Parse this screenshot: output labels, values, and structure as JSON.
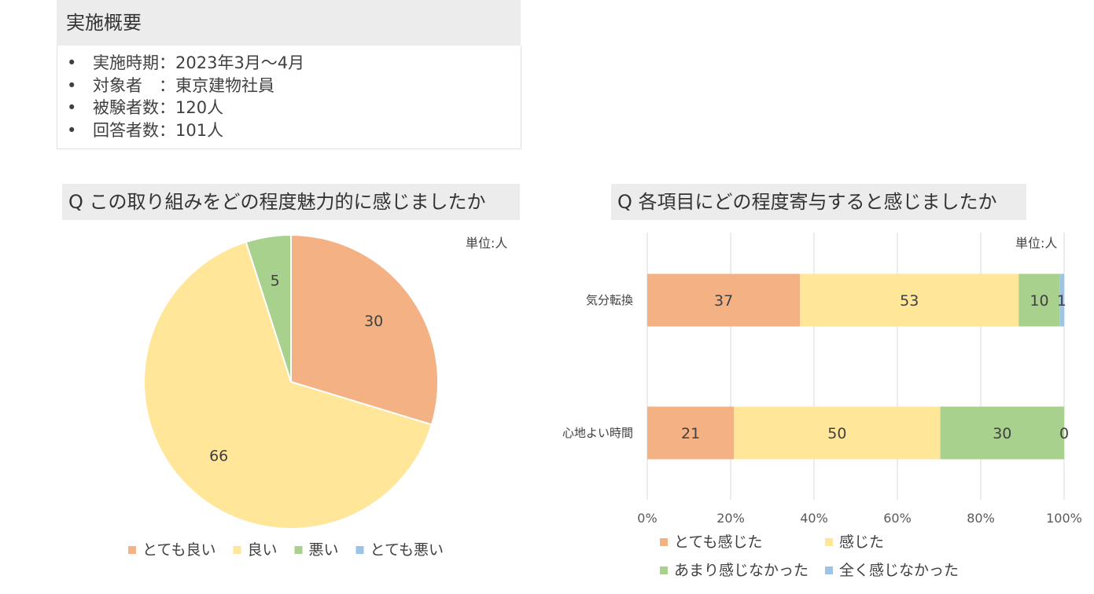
{
  "summary": {
    "title": "実施概要",
    "items": [
      {
        "bullet": "•",
        "text": "実施時期：2023年3月～4月"
      },
      {
        "bullet": "•",
        "text": "対象者　：東京建物社員"
      },
      {
        "bullet": "•",
        "text": "被験者数：120人"
      },
      {
        "bullet": "•",
        "text": "回答者数：101人"
      }
    ]
  },
  "chart_data": [
    {
      "type": "pie",
      "title": "Q この取り組みをどの程度魅力的に感じましたか",
      "unit": "単位:人",
      "labels": [
        "とても良い",
        "良い",
        "悪い",
        "とても悪い"
      ],
      "values": [
        30,
        66,
        5,
        0
      ],
      "colors": [
        "#f4b183",
        "#ffe699",
        "#a9d18e",
        "#9dc3e6"
      ],
      "legend_position": "bottom"
    },
    {
      "type": "bar",
      "orientation": "horizontal",
      "stacked": "percent",
      "title": "Q 各項目にどの程度寄与すると感じましたか",
      "unit": "単位:人",
      "categories": [
        "気分転換",
        "心地よい時間"
      ],
      "series": [
        {
          "name": "とても感じた",
          "values": [
            37,
            21
          ],
          "color": "#f4b183"
        },
        {
          "name": "感じた",
          "values": [
            53,
            50
          ],
          "color": "#ffe699"
        },
        {
          "name": "あまり感じなかった",
          "values": [
            10,
            30
          ],
          "color": "#a9d18e"
        },
        {
          "name": "全く感じなかった",
          "values": [
            1,
            0
          ],
          "color": "#9dc3e6"
        }
      ],
      "xticks": [
        "0%",
        "20%",
        "40%",
        "60%",
        "80%",
        "100%"
      ],
      "xlim": [
        0,
        100
      ],
      "grid": true,
      "legend_position": "bottom"
    }
  ]
}
